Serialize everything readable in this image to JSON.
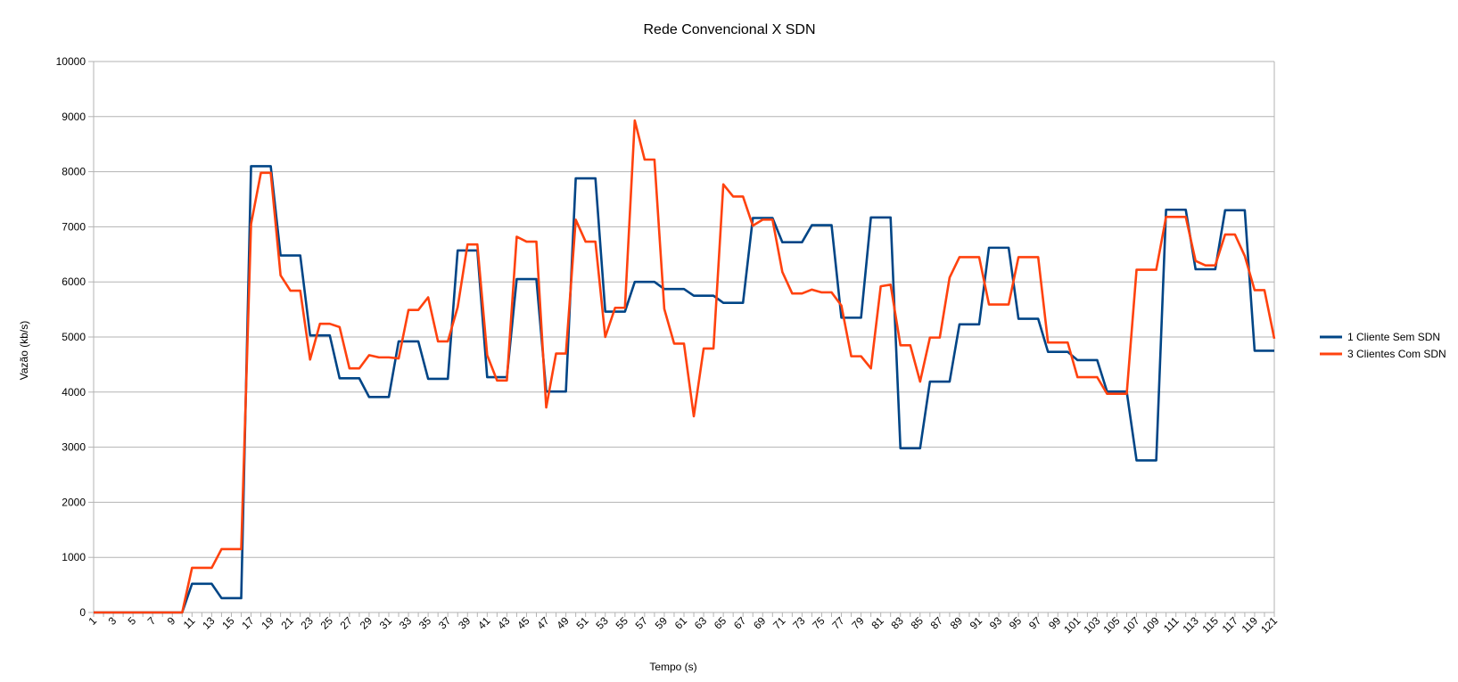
{
  "chart_data": {
    "type": "line",
    "title": "Rede Convencional X SDN",
    "xlabel": "Tempo (s)",
    "ylabel": "Vazão (kb/s)",
    "x_start": 1,
    "x_end": 121,
    "xtick_step": 2,
    "ylim": [
      0,
      10000
    ],
    "ytick_step": 1000,
    "grid": true,
    "legend_position": "right",
    "series": [
      {
        "name": "1 Cliente Sem SDN",
        "color": "#004586",
        "values": [
          0,
          0,
          0,
          0,
          0,
          0,
          0,
          0,
          0,
          0,
          520,
          520,
          520,
          260,
          260,
          260,
          8100,
          8100,
          8100,
          6480,
          6480,
          6480,
          5030,
          5030,
          5030,
          4250,
          4250,
          4250,
          3910,
          3910,
          3910,
          4920,
          4920,
          4920,
          4240,
          4240,
          4240,
          6570,
          6570,
          6570,
          4270,
          4270,
          4270,
          6050,
          6050,
          6050,
          4010,
          4010,
          4010,
          7880,
          7880,
          7880,
          5460,
          5460,
          5460,
          6000,
          6000,
          6000,
          5870,
          5870,
          5870,
          5750,
          5750,
          5750,
          5620,
          5620,
          5620,
          7160,
          7160,
          7160,
          6720,
          6720,
          6720,
          7030,
          7030,
          7030,
          5350,
          5350,
          5350,
          7170,
          7170,
          7170,
          2980,
          2980,
          2980,
          4190,
          4190,
          4190,
          5230,
          5230,
          5230,
          6620,
          6620,
          6620,
          5330,
          5330,
          5330,
          4730,
          4730,
          4730,
          4580,
          4580,
          4580,
          4010,
          4010,
          4010,
          2760,
          2760,
          2760,
          7310,
          7310,
          7310,
          6230,
          6230,
          6230,
          7300,
          7300,
          7300,
          4750,
          4750,
          4750
        ]
      },
      {
        "name": "3 Clientes Com SDN",
        "color": "#ff420e",
        "values": [
          0,
          0,
          0,
          0,
          0,
          0,
          0,
          0,
          0,
          0,
          810,
          810,
          810,
          1150,
          1150,
          1150,
          7050,
          7980,
          7980,
          6120,
          5840,
          5840,
          4590,
          5240,
          5240,
          5180,
          4430,
          4430,
          4670,
          4630,
          4630,
          4610,
          5490,
          5490,
          5720,
          4920,
          4920,
          5540,
          6680,
          6680,
          4670,
          4210,
          4210,
          6820,
          6730,
          6730,
          3720,
          4700,
          4700,
          7130,
          6730,
          6730,
          5000,
          5530,
          5530,
          8930,
          8220,
          8220,
          5510,
          4880,
          4880,
          3560,
          4790,
          4790,
          7770,
          7550,
          7550,
          7020,
          7130,
          7130,
          6180,
          5790,
          5790,
          5860,
          5810,
          5810,
          5570,
          4650,
          4650,
          4430,
          5920,
          5950,
          4850,
          4850,
          4190,
          4990,
          4990,
          6080,
          6450,
          6450,
          6450,
          5590,
          5590,
          5590,
          6450,
          6450,
          6450,
          4900,
          4900,
          4900,
          4270,
          4270,
          4270,
          3970,
          3970,
          3970,
          6220,
          6220,
          6220,
          7180,
          7180,
          7180,
          6380,
          6300,
          6300,
          6860,
          6860,
          6470,
          5850,
          5850,
          4970
        ]
      }
    ]
  }
}
